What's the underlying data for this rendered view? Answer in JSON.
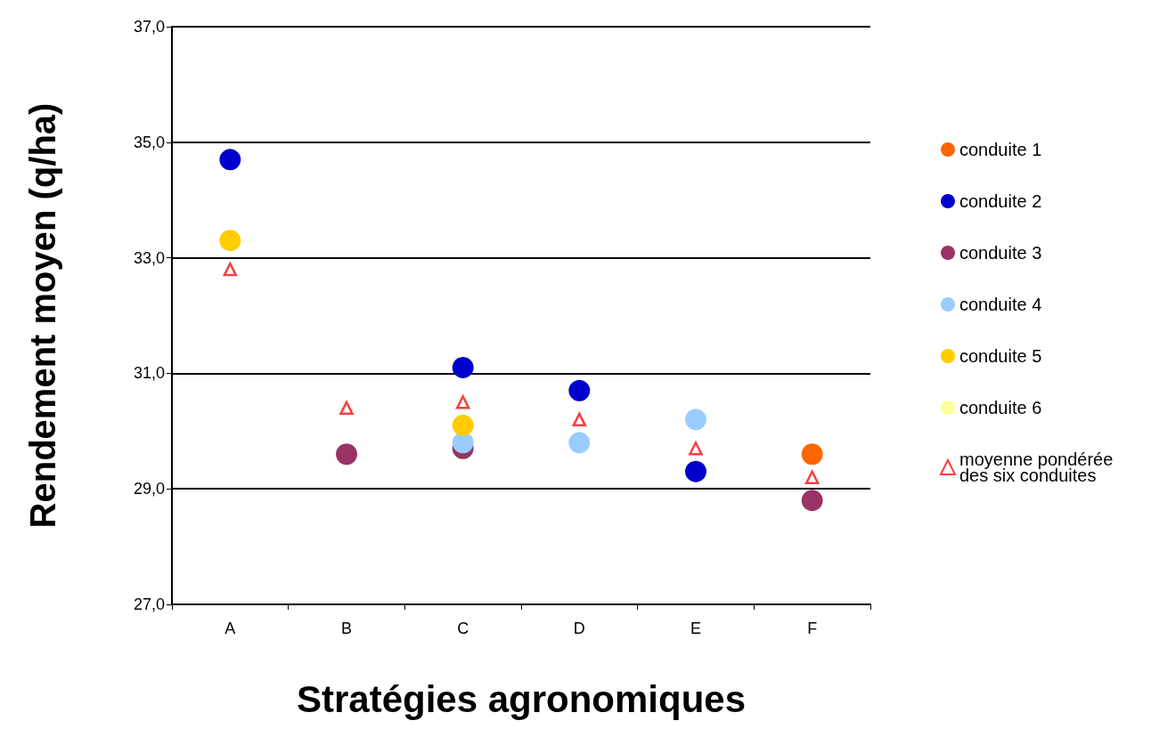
{
  "chart_data": {
    "type": "scatter",
    "xlabel": "Stratégies agronomiques",
    "ylabel": "Rendement moyen (q/ha)",
    "categories": [
      "A",
      "B",
      "C",
      "D",
      "E",
      "F"
    ],
    "ylim": [
      27,
      37
    ],
    "yticks": [
      {
        "value": 27,
        "label": "27,0"
      },
      {
        "value": 29,
        "label": "29,0"
      },
      {
        "value": 31,
        "label": "31,0"
      },
      {
        "value": 33,
        "label": "33,0"
      },
      {
        "value": 35,
        "label": "35,0"
      },
      {
        "value": 37,
        "label": "37,0"
      }
    ],
    "grid": "y",
    "legend": "right",
    "series": [
      {
        "name": "conduite 1",
        "color": "#ff6600",
        "marker": "circle",
        "values": [
          null,
          null,
          null,
          null,
          null,
          29.6
        ]
      },
      {
        "name": "conduite 2",
        "color": "#0000cc",
        "marker": "circle",
        "values": [
          34.7,
          null,
          31.1,
          30.7,
          29.3,
          null
        ]
      },
      {
        "name": "conduite 3",
        "color": "#993366",
        "marker": "circle",
        "values": [
          null,
          29.6,
          29.7,
          null,
          null,
          28.8
        ]
      },
      {
        "name": "conduite 4",
        "color": "#99ccff",
        "marker": "circle",
        "values": [
          null,
          null,
          29.8,
          29.8,
          30.2,
          null
        ]
      },
      {
        "name": "conduite 5",
        "color": "#ffcc00",
        "marker": "circle",
        "values": [
          33.3,
          null,
          30.1,
          null,
          null,
          null
        ]
      },
      {
        "name": "conduite 6",
        "color": "#ffff99",
        "marker": "circle",
        "values": [
          null,
          null,
          null,
          null,
          null,
          null
        ]
      },
      {
        "name": "moyenne pondérée des six conduites",
        "color": "#ee1111",
        "marker": "triangle",
        "values": [
          32.8,
          30.4,
          30.5,
          30.2,
          29.7,
          29.2
        ]
      }
    ]
  }
}
